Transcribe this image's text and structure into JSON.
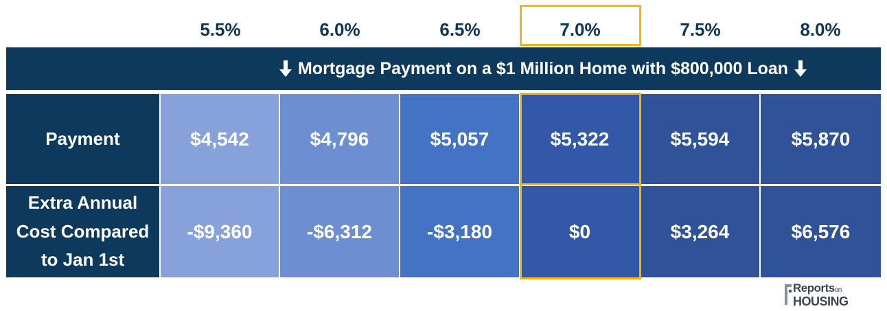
{
  "rates": [
    "5.5%",
    "6.0%",
    "6.5%",
    "7.0%",
    "7.5%",
    "8.0%"
  ],
  "highlighted_rate": "7.0%",
  "banner": "Mortgage Payment on a $1 Million Home with $800,000 Loan",
  "rows": [
    {
      "label": "Payment",
      "values": [
        "$4,542",
        "$4,796",
        "$5,057",
        "$5,322",
        "$5,594",
        "$5,870"
      ]
    },
    {
      "label_lines": [
        "Extra Annual",
        "Cost Compared",
        "to Jan 1st"
      ],
      "values": [
        "-$9,360",
        "-$6,312",
        "-$3,180",
        "$0",
        "$3,264",
        "$6,576"
      ]
    }
  ],
  "colors": {
    "navy": "#0d3a5c",
    "highlight": "#f2b418",
    "cells": [
      "#87a2db",
      "#6d8fd2",
      "#4472c4",
      "#3458a8",
      "#2f5298",
      "#2f5298"
    ]
  },
  "logo": {
    "line1": "Reports",
    "line1_small": "on",
    "line2": "HOUSING"
  },
  "chart_data": {
    "type": "table",
    "columns": [
      "5.5%",
      "6.0%",
      "6.5%",
      "7.0%",
      "7.5%",
      "8.0%"
    ],
    "title": "Mortgage Payment on a $1 Million Home with $800,000 Loan",
    "rows": [
      {
        "name": "Payment",
        "values": [
          4542,
          4796,
          5057,
          5322,
          5594,
          5870
        ]
      },
      {
        "name": "Extra Annual Cost Compared to Jan 1st",
        "values": [
          -9360,
          -6312,
          -3180,
          0,
          3264,
          6576
        ]
      }
    ]
  }
}
